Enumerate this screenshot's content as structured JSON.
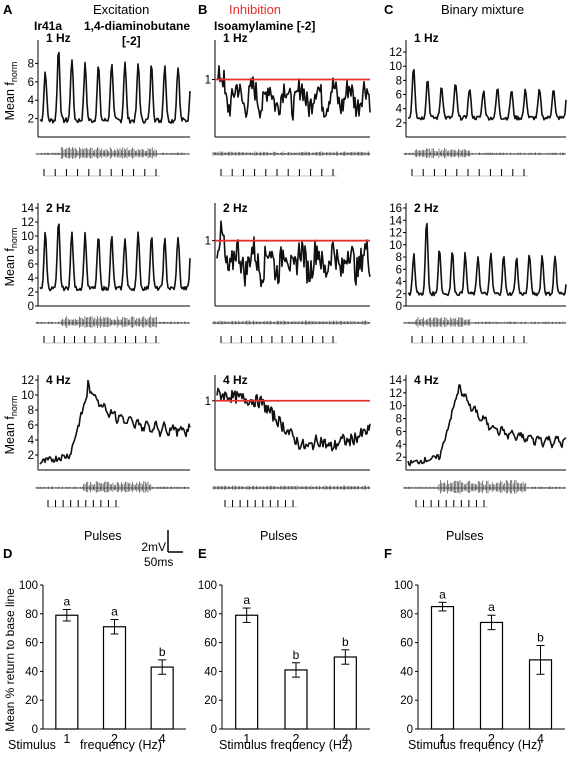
{
  "figure": {
    "panel_letters": [
      "A",
      "B",
      "C",
      "D",
      "E",
      "F"
    ],
    "headers": {
      "A_condition": "Excitation",
      "A_receptor": "Ir41a",
      "A_odor": "1,4-diaminobutane",
      "A_conc": "[-2]",
      "B_condition": "Inhibition",
      "B_odor": "Isoamylamine [-2]",
      "C_condition": "Binary mixture"
    },
    "freq_labels": [
      "1 Hz",
      "2 Hz",
      "4 Hz"
    ],
    "ylabel_trace": "Mean f",
    "ylabel_trace_sub": "norm",
    "pulses_label": "Pulses",
    "scalebar": {
      "voltage": "2mV",
      "time": "50ms"
    },
    "bar_ylabel": "Mean % return to base line",
    "bar_xlabel_stimulus": "Stimulus",
    "bar_xlabel_freq": "frequency (Hz)",
    "bar_xlabel_full": "Stimulus frequency (Hz)",
    "colors": {
      "inhibition": "#e8302a",
      "line": "#111111"
    }
  },
  "chart_data": [
    {
      "panel": "A",
      "type": "line",
      "title": "1 Hz",
      "ylabel": "Mean fnorm",
      "yticks": [
        2,
        4,
        6,
        8
      ],
      "ylim": [
        0,
        10
      ],
      "peak_count": 11,
      "baseline": 1.8,
      "peak_values": [
        7.2,
        9.6,
        8.6,
        7.9,
        7.8,
        8.2,
        8.2,
        8.0,
        8.0,
        7.9,
        7.8
      ]
    },
    {
      "panel": "B",
      "type": "line",
      "title": "1 Hz",
      "yticks": [
        1
      ],
      "ylim": [
        0,
        1.6
      ],
      "reference_line": 1,
      "mean_level": 0.7
    },
    {
      "panel": "C",
      "type": "line",
      "title": "1 Hz",
      "yticks": [
        2,
        4,
        6,
        8,
        10,
        12
      ],
      "ylim": [
        0,
        13
      ],
      "peak_count": 11,
      "baseline": 2.7,
      "peak_values": [
        10,
        8.2,
        7.3,
        7.6,
        6.8,
        6.6,
        6.9,
        6.6,
        6.7,
        6.6,
        6.8
      ]
    },
    {
      "panel": "A",
      "type": "line",
      "title": "2 Hz",
      "ylabel": "Mean fnorm",
      "yticks": [
        0,
        2,
        4,
        6,
        8,
        10,
        12,
        14
      ],
      "ylim": [
        0,
        14
      ],
      "peak_count": 11,
      "baseline": 2.5,
      "peak_values": [
        10.5,
        12,
        10.5,
        10.3,
        10,
        10,
        9.8,
        10.5,
        10.2,
        9.5,
        10
      ]
    },
    {
      "panel": "B",
      "type": "line",
      "title": "2 Hz",
      "yticks": [
        1
      ],
      "ylim": [
        0,
        1.5
      ],
      "reference_line": 1,
      "mean_level": 0.7
    },
    {
      "panel": "C",
      "type": "line",
      "title": "2 Hz",
      "yticks": [
        0,
        2,
        4,
        6,
        8,
        10,
        12,
        14,
        16
      ],
      "ylim": [
        0,
        16
      ],
      "peak_count": 12,
      "baseline": 2,
      "peak_values": [
        8.5,
        14,
        9.5,
        9,
        8.5,
        8.2,
        8.6,
        8.3,
        8,
        8.6,
        8.2,
        8.2
      ]
    },
    {
      "panel": "A",
      "type": "line",
      "title": "4 Hz",
      "ylabel": "Mean fnorm",
      "yticks": [
        2,
        4,
        6,
        8,
        10,
        12
      ],
      "ylim": [
        0,
        12
      ],
      "peak_value": 10.5,
      "start": 1.0,
      "end": 4.5
    },
    {
      "panel": "B",
      "type": "line",
      "title": "4 Hz",
      "yticks": [
        1
      ],
      "ylim": [
        0,
        1.3
      ],
      "reference_line": 1,
      "start": 1.1,
      "end": 0.55
    },
    {
      "panel": "C",
      "type": "line",
      "title": "4 Hz",
      "yticks": [
        2,
        4,
        6,
        8,
        10,
        12,
        14
      ],
      "ylim": [
        0,
        14
      ],
      "peak_value": 12.5,
      "start": 1.0,
      "end": 3.5
    },
    {
      "panel": "D",
      "type": "bar",
      "categories": [
        "1",
        "2",
        "4"
      ],
      "values": [
        79,
        71,
        43
      ],
      "errors": [
        4,
        5,
        5
      ],
      "letters": [
        "a",
        "a",
        "b"
      ],
      "ylim": [
        0,
        100
      ],
      "yticks": [
        0,
        20,
        40,
        60,
        80,
        100
      ],
      "ylabel": "Mean % return to base line",
      "xlabel": "Stimulus frequency (Hz)"
    },
    {
      "panel": "E",
      "type": "bar",
      "categories": [
        "1",
        "2",
        "4"
      ],
      "values": [
        79,
        41,
        50
      ],
      "errors": [
        5,
        5,
        5
      ],
      "letters": [
        "a",
        "b",
        "b"
      ],
      "ylim": [
        0,
        100
      ],
      "yticks": [
        0,
        20,
        40,
        60,
        80,
        100
      ],
      "xlabel": "Stimulus frequency (Hz)"
    },
    {
      "panel": "F",
      "type": "bar",
      "categories": [
        "1",
        "2",
        "4"
      ],
      "values": [
        85,
        74,
        48
      ],
      "errors": [
        3,
        5,
        10
      ],
      "letters": [
        "a",
        "a",
        "b"
      ],
      "ylim": [
        0,
        100
      ],
      "yticks": [
        0,
        20,
        40,
        60,
        80,
        100
      ],
      "xlabel": "Stimulus frequency (Hz)"
    }
  ]
}
